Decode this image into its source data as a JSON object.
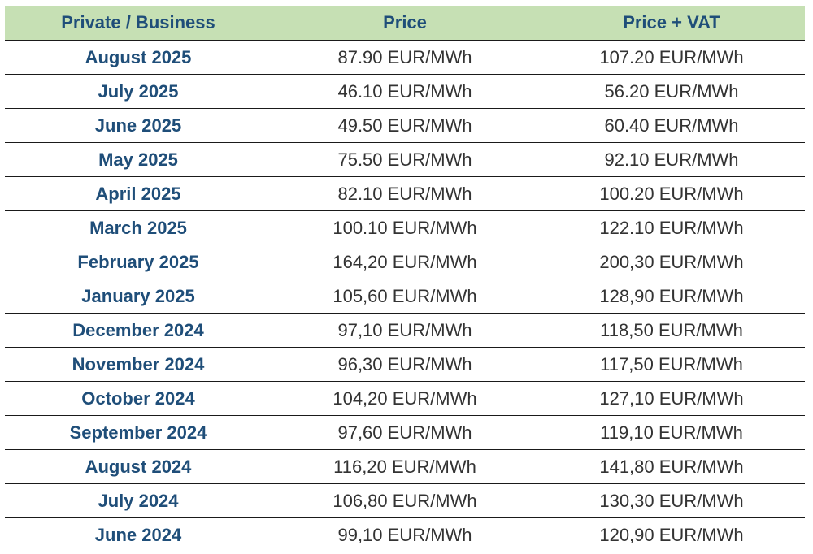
{
  "table": {
    "headers": [
      "Private / Business",
      "Price",
      "Price + VAT"
    ],
    "rows": [
      {
        "month": "August 2025",
        "price": "87.90 EUR/MWh",
        "price_vat": "107.20 EUR/MWh"
      },
      {
        "month": "July 2025",
        "price": "46.10 EUR/MWh",
        "price_vat": "56.20 EUR/MWh"
      },
      {
        "month": "June 2025",
        "price": "49.50 EUR/MWh",
        "price_vat": "60.40 EUR/MWh"
      },
      {
        "month": "May 2025",
        "price": "75.50 EUR/MWh",
        "price_vat": "92.10 EUR/MWh"
      },
      {
        "month": "April 2025",
        "price": "82.10 EUR/MWh",
        "price_vat": "100.20 EUR/MWh"
      },
      {
        "month": "March 2025",
        "price": "100.10 EUR/MWh",
        "price_vat": "122.10 EUR/MWh"
      },
      {
        "month": "February 2025",
        "price": "164,20 EUR/MWh",
        "price_vat": "200,30 EUR/MWh"
      },
      {
        "month": "January 2025",
        "price": "105,60 EUR/MWh",
        "price_vat": "128,90 EUR/MWh"
      },
      {
        "month": "December 2024",
        "price": "97,10 EUR/MWh",
        "price_vat": "118,50 EUR/MWh"
      },
      {
        "month": "November 2024",
        "price": "96,30 EUR/MWh",
        "price_vat": "117,50 EUR/MWh"
      },
      {
        "month": "October 2024",
        "price": "104,20 EUR/MWh",
        "price_vat": "127,10 EUR/MWh"
      },
      {
        "month": "September 2024",
        "price": "97,60 EUR/MWh",
        "price_vat": "119,10 EUR/MWh"
      },
      {
        "month": "August 2024",
        "price": "116,20 EUR/MWh",
        "price_vat": "141,80 EUR/MWh"
      },
      {
        "month": "July 2024",
        "price": "106,80 EUR/MWh",
        "price_vat": "130,30 EUR/MWh"
      },
      {
        "month": "June 2024",
        "price": "99,10 EUR/MWh",
        "price_vat": "120,90 EUR/MWh"
      }
    ]
  },
  "colors": {
    "header_background": "#c6e0b4",
    "header_text": "#1f4e79",
    "month_text": "#1f4e79",
    "value_text": "#333333",
    "row_divider": "#1a1a1a"
  }
}
